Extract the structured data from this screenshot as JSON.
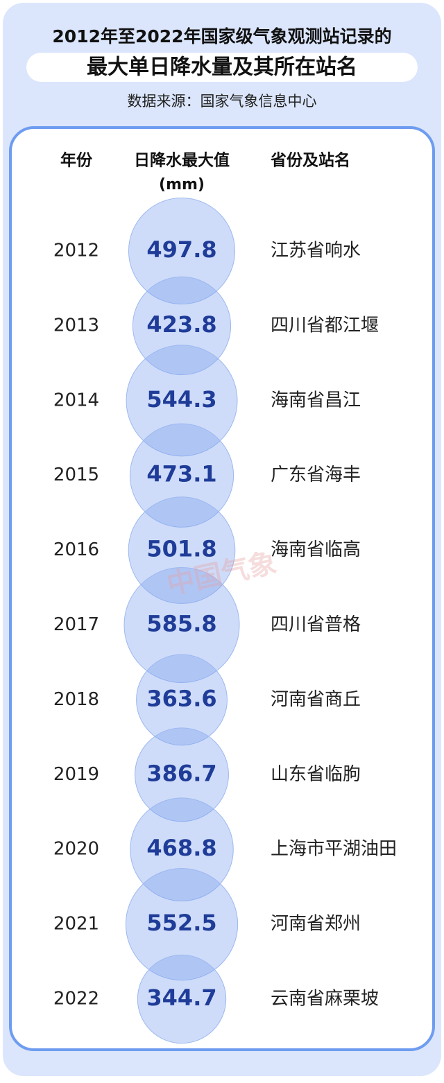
{
  "chart_data": {
    "type": "bubble",
    "title_lines": [
      "2012年至2022年国家级气象观测站记录的",
      "最大单日降水量及其所在站名"
    ],
    "source": "数据来源：国家气象信息中心",
    "watermark": "中国气象",
    "headers": {
      "year": "年份",
      "value": "日降水最大值",
      "unit": "(mm)",
      "station": "省份及站名"
    },
    "categories": [
      "2012",
      "2013",
      "2014",
      "2015",
      "2016",
      "2017",
      "2018",
      "2019",
      "2020",
      "2021",
      "2022"
    ],
    "values": [
      497.8,
      423.8,
      544.3,
      473.1,
      501.8,
      585.8,
      363.6,
      386.7,
      468.8,
      552.5,
      344.7
    ],
    "stations": [
      "江苏省响水",
      "四川省都江堰",
      "海南省昌江",
      "广东省海丰",
      "海南省临高",
      "四川省普格",
      "河南省商丘",
      "山东省临朐",
      "上海市平湖油田",
      "河南省郑州",
      "云南省麻栗坡"
    ],
    "color": "#7fa3ee"
  }
}
